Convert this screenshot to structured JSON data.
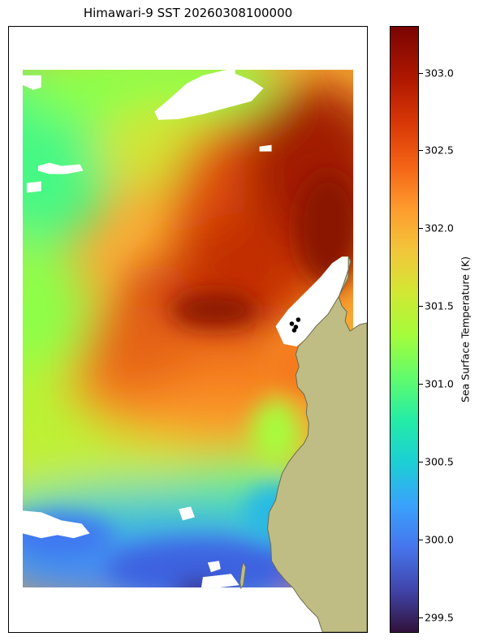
{
  "title": "Himawari-9 SST 20260308100000",
  "colorbar": {
    "label": "Sea Surface Temperature (K)",
    "min": 299.4,
    "max": 303.3,
    "ticks": [
      "299.5",
      "300.0",
      "300.5",
      "301.0",
      "301.5",
      "302.0",
      "302.5",
      "303.0"
    ],
    "colormap": "turbo"
  },
  "colors": {
    "land": "#bfbd84",
    "coast": "#6b6b50",
    "no_data": "#ffffff",
    "station_marker": "#000000"
  },
  "map": {
    "markers": [
      {
        "name": "station-1",
        "count": 4
      }
    ]
  }
}
